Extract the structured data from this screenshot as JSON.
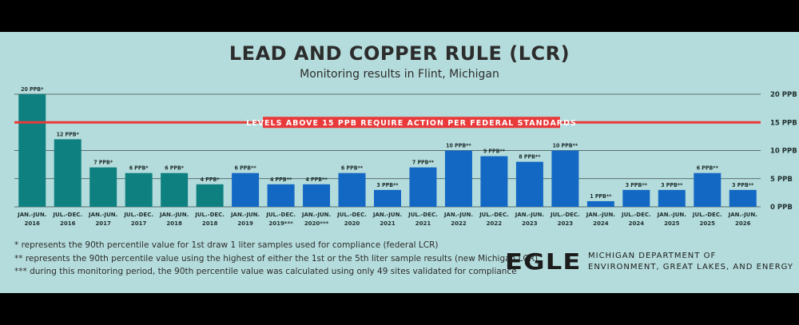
{
  "chart_data": {
    "type": "bar",
    "title": "LEAD AND COPPER RULE (LCR)",
    "subtitle": "Monitoring results in Flint, Michigan",
    "categories": [
      [
        "JAN.-JUN.",
        "2016"
      ],
      [
        "JUL.-DEC.",
        "2016"
      ],
      [
        "JAN.-JUN.",
        "2017"
      ],
      [
        "JUL.-DEC.",
        "2017"
      ],
      [
        "JAN.-JUN.",
        "2018"
      ],
      [
        "JUL.-DEC.",
        "2018"
      ],
      [
        "JAN.-JUN.",
        "2019"
      ],
      [
        "JUL.-DEC.",
        "2019***"
      ],
      [
        "JAN.-JUN.",
        "2020***"
      ],
      [
        "JUL.-DEC.",
        "2020"
      ],
      [
        "JAN.-JUN.",
        "2021"
      ],
      [
        "JUL.-DEC.",
        "2021"
      ],
      [
        "JAN.-JUN.",
        "2022"
      ],
      [
        "JUL.-DEC.",
        "2022"
      ],
      [
        "JAN.-JUN.",
        "2023"
      ],
      [
        "JUL.-DEC.",
        "2023"
      ],
      [
        "JAN.-JUN.",
        "2024"
      ],
      [
        "JUL.-DEC.",
        "2024"
      ],
      [
        "JAN.-JUN.",
        "2025"
      ],
      [
        "JUL.-DEC.",
        "2025"
      ],
      [
        "JAN.-JUN.",
        "2026"
      ]
    ],
    "values": [
      20,
      12,
      7,
      6,
      6,
      4,
      6,
      4,
      4,
      6,
      3,
      7,
      10,
      9,
      8,
      10,
      1,
      3,
      3,
      6,
      3
    ],
    "value_labels": [
      "20 PPB*",
      "12 PPB*",
      "7 PPB*",
      "6 PPB*",
      "6 PPB*",
      "4 PPB*",
      "6 PPB**",
      "4 PPB**",
      "4 PPB**",
      "6 PPB**",
      "3 PPB**",
      "7 PPB**",
      "10 PPB**",
      "9 PPB**",
      "8 PPB**",
      "10 PPB**",
      "1 PPB**",
      "3 PPB**",
      "3 PPB**",
      "6 PPB**",
      "3 PPB**"
    ],
    "bar_colors": [
      "#0f8080",
      "#0f8080",
      "#0f8080",
      "#0f8080",
      "#0f8080",
      "#0f8080",
      "#1368c4",
      "#1368c4",
      "#1368c4",
      "#1368c4",
      "#1368c4",
      "#1368c4",
      "#1368c4",
      "#1368c4",
      "#1368c4",
      "#1368c4",
      "#1368c4",
      "#1368c4",
      "#1368c4",
      "#1368c4",
      "#1368c4"
    ],
    "ylim": [
      0,
      20
    ],
    "yticks": [
      0,
      5,
      10,
      15,
      20
    ],
    "ytick_labels": [
      "0 PPB",
      "5 PPB",
      "10 PPB",
      "15 PPB",
      "20 PPB"
    ],
    "reference_line": {
      "value": 15,
      "label": "LEVELS ABOVE 15 PPB REQUIRE ACTION PER FEDERAL STANDARDS",
      "color": "#e83a3a"
    },
    "grid": true
  },
  "footnotes": [
    "* represents the 90th percentile value for 1st draw 1 liter samples used for compliance (federal LCR)",
    "** represents the 90th percentile value using the highest of either the 1st or the 5th liter sample results (new Michigan LCR)",
    "*** during this monitoring period, the 90th percentile value was calculated using only 49 sites validated for compliance"
  ],
  "logo": {
    "text": "EGLE"
  },
  "agency": {
    "line1": "MICHIGAN DEPARTMENT OF",
    "line2": "ENVIRONMENT, GREAT LAKES, AND ENERGY"
  },
  "colors": {
    "background": "#b5dcdc",
    "teal": "#0f8080",
    "blue": "#1368c4",
    "reference": "#e83a3a"
  }
}
